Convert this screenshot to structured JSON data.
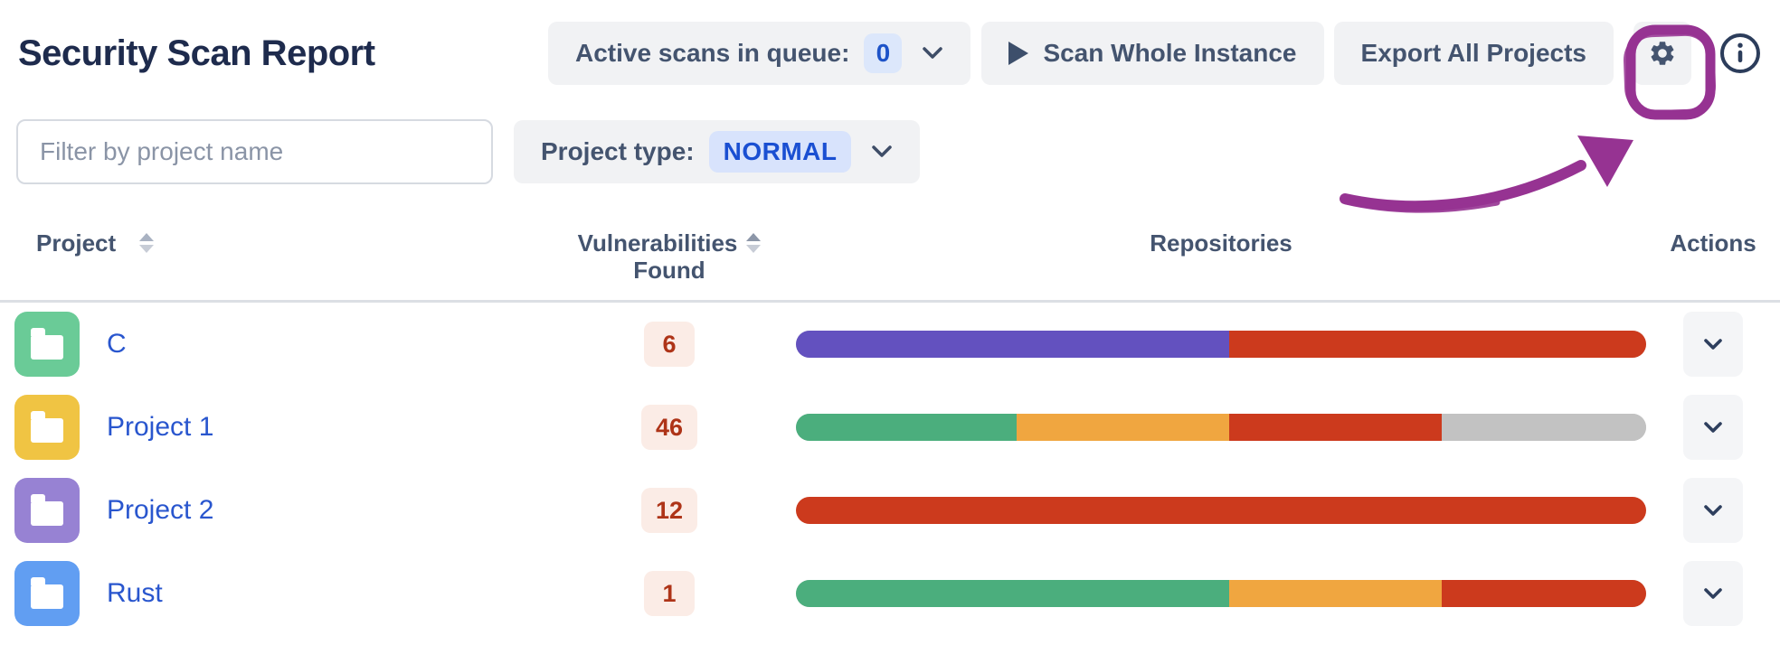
{
  "header": {
    "title": "Security Scan Report",
    "queue_button": {
      "label": "Active scans in queue:",
      "count": "0"
    },
    "scan_button": {
      "label": "Scan Whole Instance"
    },
    "export_button": {
      "label": "Export All Projects"
    }
  },
  "filters": {
    "project_filter": {
      "placeholder": "Filter by project name",
      "value": ""
    },
    "project_type": {
      "label": "Project type:",
      "value": "NORMAL"
    }
  },
  "table": {
    "columns": {
      "project": "Project",
      "vulnerabilities_line1": "Vulnerabilities",
      "vulnerabilities_line2": "Found",
      "repositories": "Repositories",
      "actions": "Actions"
    },
    "rows": [
      {
        "name": "C",
        "avatar_color": "#6ACB97",
        "vulnerabilities_found": "6",
        "repositories_bar": [
          {
            "color": "#6351BF",
            "percent": 51
          },
          {
            "color": "#CC3A1D",
            "percent": 49
          }
        ]
      },
      {
        "name": "Project 1",
        "avatar_color": "#F0C443",
        "vulnerabilities_found": "46",
        "repositories_bar": [
          {
            "color": "#4BAE7D",
            "percent": 26
          },
          {
            "color": "#F0A640",
            "percent": 25
          },
          {
            "color": "#CC3A1D",
            "percent": 25
          },
          {
            "color": "#C2C2C2",
            "percent": 24
          }
        ]
      },
      {
        "name": "Project 2",
        "avatar_color": "#9782D3",
        "vulnerabilities_found": "12",
        "repositories_bar": [
          {
            "color": "#CC3A1D",
            "percent": 100
          }
        ]
      },
      {
        "name": "Rust",
        "avatar_color": "#619EF2",
        "vulnerabilities_found": "1",
        "repositories_bar": [
          {
            "color": "#4BAE7D",
            "percent": 51
          },
          {
            "color": "#F0A640",
            "percent": 25
          },
          {
            "color": "#CC3A1D",
            "percent": 24
          }
        ]
      }
    ]
  },
  "annotation": {
    "description": "hand-drawn circle around settings button with arrow",
    "color": "#963392"
  },
  "icons": {
    "queue_chevron": "chevron-down",
    "scan": "play",
    "settings": "gear",
    "info": "info-circle",
    "sort": "sort-arrows",
    "row_action": "chevron-down",
    "project_avatar": "folder"
  },
  "colors": {
    "title_text": "#1E2B4D",
    "button_bg": "#F1F2F4",
    "button_text": "#44546F",
    "badge_blue_bg": "#DCE7FB",
    "badge_blue_text": "#1D53C8",
    "vuln_badge_bg": "#FBECE6",
    "vuln_badge_text": "#AE3418",
    "link": "#2956CE",
    "divider": "#DCDFE4",
    "annotation": "#963392"
  }
}
